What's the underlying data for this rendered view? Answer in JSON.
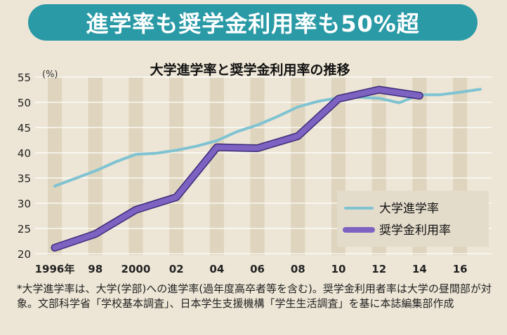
{
  "headline": "進学率も奨学金利用率も50%超",
  "footnote": "*大学進学率は、大学(学部)への進学率(過年度高卒者等を含む)。奨学金利用者率は大学の昼間部が対象。文部科学省「学校基本調査」、日本学生支援機構「学生生活調査」を基に本誌編集部作成",
  "chart_data": {
    "type": "line",
    "title": "大学進学率と奨学金利用率の推移",
    "ylabel": "(%)",
    "xlabel": "",
    "xlim": [
      1996,
      2017
    ],
    "ylim": [
      20,
      55
    ],
    "grid": true,
    "legend_position": "bottom-right",
    "x_ticks": [
      {
        "value": 1996,
        "label": "1996年"
      },
      {
        "value": 1998,
        "label": "98"
      },
      {
        "value": 2000,
        "label": "2000"
      },
      {
        "value": 2002,
        "label": "02"
      },
      {
        "value": 2004,
        "label": "04"
      },
      {
        "value": 2006,
        "label": "06"
      },
      {
        "value": 2008,
        "label": "08"
      },
      {
        "value": 2010,
        "label": "10"
      },
      {
        "value": 2012,
        "label": "12"
      },
      {
        "value": 2014,
        "label": "14"
      },
      {
        "value": 2016,
        "label": "16"
      }
    ],
    "y_ticks": [
      20,
      25,
      30,
      35,
      40,
      45,
      50,
      55
    ],
    "series": [
      {
        "name": "大学進学率",
        "color": "#7fc3d2",
        "x": [
          1996,
          1997,
          1998,
          1999,
          2000,
          2001,
          2002,
          2003,
          2004,
          2005,
          2006,
          2007,
          2008,
          2009,
          2010,
          2011,
          2012,
          2013,
          2014,
          2015,
          2016,
          2017
        ],
        "values": [
          33.4,
          34.9,
          36.4,
          38.2,
          39.7,
          39.9,
          40.5,
          41.3,
          42.4,
          44.2,
          45.5,
          47.2,
          49.1,
          50.2,
          50.9,
          51.0,
          50.8,
          49.9,
          51.5,
          51.5,
          52.0,
          52.6
        ]
      },
      {
        "name": "奨学金利用率",
        "color": "#7d62c2",
        "x": [
          1996,
          1998,
          2000,
          2002,
          2004,
          2006,
          2008,
          2010,
          2012,
          2014
        ],
        "values": [
          21.2,
          23.9,
          28.7,
          31.2,
          41.1,
          40.9,
          43.3,
          50.7,
          52.5,
          51.3
        ]
      }
    ]
  }
}
